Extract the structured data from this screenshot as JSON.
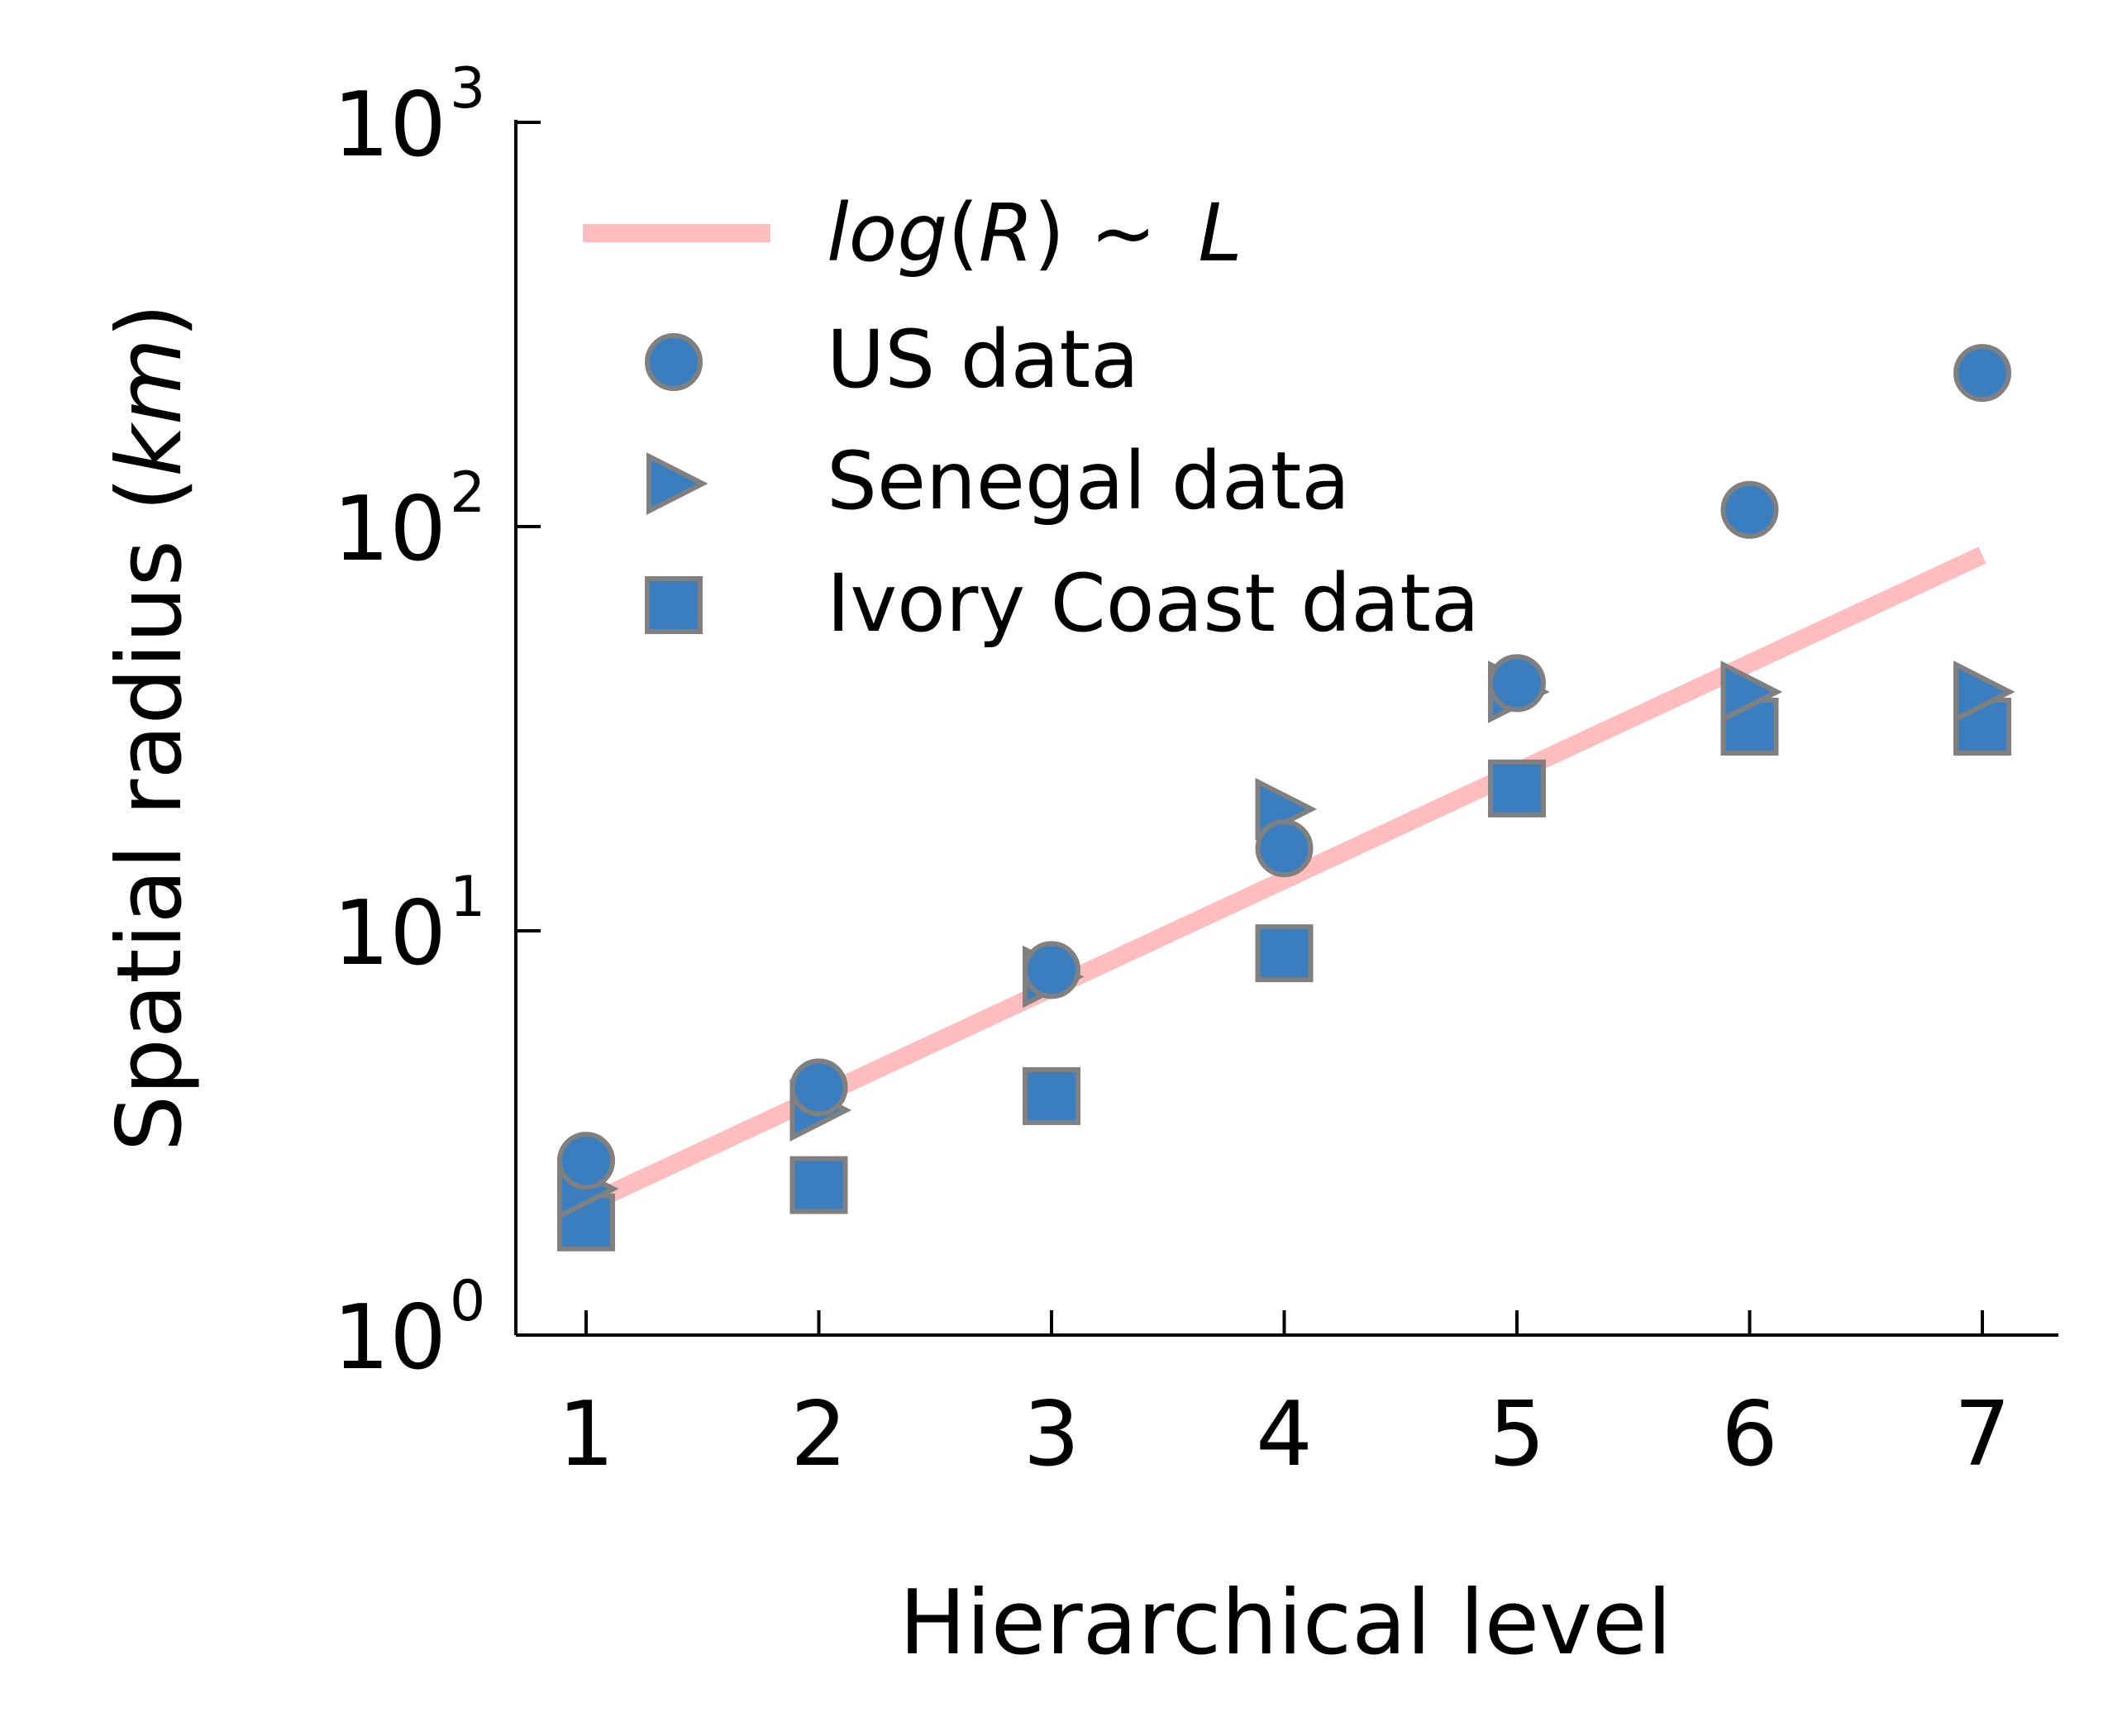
{
  "chart_data": {
    "type": "scatter",
    "title": "",
    "xlabel": "Hierarchical level",
    "ylabel": "Spatial radius (km)",
    "ylabel_parts": {
      "main": "Spatial radius (",
      "unit": "km",
      "close": ")"
    },
    "x": [
      1,
      2,
      3,
      4,
      5,
      6,
      7
    ],
    "xticks": [
      "1",
      "2",
      "3",
      "4",
      "5",
      "6",
      "7"
    ],
    "xlim": [
      0.7,
      7.3
    ],
    "ylim": [
      1,
      1000
    ],
    "yscale": "log",
    "yticks": [
      {
        "value": 1,
        "base": "10",
        "exp": "0"
      },
      {
        "value": 10,
        "base": "10",
        "exp": "1"
      },
      {
        "value": 100,
        "base": "10",
        "exp": "2"
      },
      {
        "value": 1000,
        "base": "10",
        "exp": "3"
      }
    ],
    "grid": false,
    "legend_position": "top-left",
    "fit_line": {
      "label_parts": {
        "f": "log",
        "open": "(",
        "v": "R",
        "close": ")",
        "tilde": " ~ ",
        "l": "L"
      },
      "x": [
        1,
        7
      ],
      "y": [
        2.1,
        85
      ],
      "color": "#ffbdbd"
    },
    "series": [
      {
        "name": "US data",
        "marker": "circle",
        "values": [
          2.7,
          4.1,
          8.0,
          16.0,
          41.0,
          110.0,
          240.0
        ]
      },
      {
        "name": "Senegal data",
        "marker": "triangle-right",
        "values": [
          2.3,
          3.6,
          7.7,
          20.0,
          39.0,
          39.0,
          39.0
        ]
      },
      {
        "name": "Ivory Coast data",
        "marker": "square",
        "values": [
          1.9,
          2.35,
          3.9,
          8.8,
          22.5,
          32.0,
          32.0
        ]
      }
    ],
    "colors": {
      "marker_fill": "#3a7ebf",
      "marker_edge": "#808080",
      "axis": "#000000"
    }
  }
}
